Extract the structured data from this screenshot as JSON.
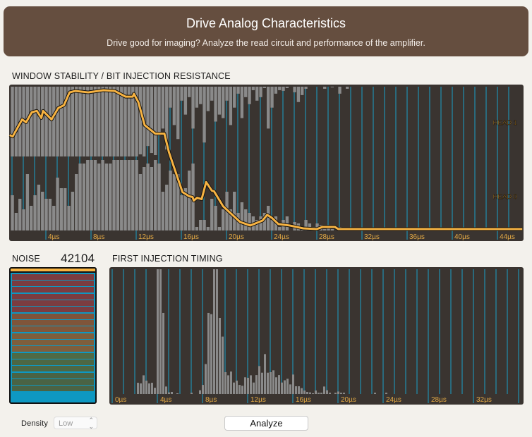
{
  "header": {
    "title": "Drive Analog Characteristics",
    "subtitle": "Drive good for imaging? Analyze the read circuit and performance of the amplifier."
  },
  "colors": {
    "header_bg": "#654e3f",
    "plot_bg": "#3a3430",
    "grid": "#1aa0c8",
    "bar": "#8a8a8a",
    "line": "#f7b342",
    "tick": "#e3a945"
  },
  "chart_data": [
    {
      "type": "bar+line",
      "title": "WINDOW STABILITY / BIT INJECTION RESISTANCE",
      "xunit": "µs",
      "xlim": [
        0.8,
        46.2
      ],
      "xticks": [
        "4µs",
        "8µs",
        "12µs",
        "16µs",
        "20µs",
        "24µs",
        "28µs",
        "32µs",
        "36µs",
        "40µs",
        "44µs"
      ],
      "xtick_values": [
        4,
        8,
        12,
        16,
        20,
        24,
        28,
        32,
        36,
        40,
        44
      ],
      "head_labels": [
        "HEAD 1",
        "HEAD 0"
      ],
      "bars_per_us": 3,
      "bars_start": 0.9,
      "head1": [
        1,
        1,
        1,
        1,
        1,
        1,
        1,
        1,
        1,
        1,
        1,
        1,
        1,
        1,
        1,
        1,
        1,
        1,
        1,
        1,
        1,
        1,
        1,
        1,
        1,
        1,
        1,
        1,
        1,
        1,
        1,
        1,
        1,
        1,
        0.97,
        1,
        0.85,
        0.95,
        0.98,
        0.7,
        0.6,
        0.9,
        0.3,
        0.55,
        0.75,
        0.2,
        0.4,
        0.15,
        0.6,
        0.3,
        0.25,
        0.8,
        0.35,
        0.2,
        0.5,
        0.4,
        0.45,
        0.2,
        0.55,
        0.3,
        0.1,
        0.45,
        0.15,
        0.25,
        0.05,
        0.2,
        0.15,
        0.02,
        0.6,
        0.3,
        0.1,
        0.05,
        0.06,
        0.02,
        0,
        0.08,
        0.22,
        0.12,
        0.03,
        0,
        0,
        0,
        0,
        0.03,
        0,
        0.01,
        0,
        0.1,
        0,
        0.03,
        0
      ],
      "head0": [
        0.5,
        0.25,
        0.45,
        0.3,
        0.8,
        0.35,
        0.5,
        0.65,
        0.55,
        0.45,
        0.45,
        0.35,
        0.75,
        0.6,
        0.6,
        0.35,
        0.55,
        0.8,
        0.95,
        0.95,
        1,
        1,
        1,
        0.95,
        1,
        0.95,
        0.95,
        1,
        1,
        1,
        1,
        1,
        1,
        1,
        0.8,
        0.9,
        0.95,
        0.9,
        1,
        0.95,
        0.55,
        0.65,
        0.85,
        0.8,
        0.8,
        0.5,
        0.6,
        0.85,
        0.95,
        0.05,
        0.15,
        0.15,
        0.05,
        0.45,
        0.35,
        0.05,
        0.3,
        0.55,
        0.3,
        0.55,
        0.25,
        0.4,
        0.3,
        0.25,
        0.2,
        0.15,
        0.2,
        0.25,
        0.35,
        0.15,
        0.2,
        0.05,
        0.15,
        0.2,
        0,
        0.12,
        0.1,
        0.05,
        0.15,
        0.1,
        0.05,
        0.1,
        0.08,
        0.02,
        0.05,
        0.02,
        0,
        0.05,
        0.02,
        0,
        0
      ],
      "line": [
        [
          0.8,
          0.67
        ],
        [
          1.06,
          0.66
        ],
        [
          1.9,
          0.78
        ],
        [
          2.25,
          0.76
        ],
        [
          2.75,
          0.83
        ],
        [
          3.2,
          0.84
        ],
        [
          3.6,
          0.79
        ],
        [
          3.75,
          0.84
        ],
        [
          4.5,
          0.78
        ],
        [
          5.1,
          0.86
        ],
        [
          5.6,
          0.88
        ],
        [
          6.1,
          0.97
        ],
        [
          6.6,
          0.98
        ],
        [
          7.75,
          0.97
        ],
        [
          9.1,
          0.985
        ],
        [
          10.1,
          0.98
        ],
        [
          11.06,
          0.94
        ],
        [
          11.7,
          0.94
        ],
        [
          11.8,
          0.96
        ],
        [
          12.2,
          0.9
        ],
        [
          12.75,
          0.74
        ],
        [
          13.7,
          0.68
        ],
        [
          14.2,
          0.68
        ],
        [
          14.5,
          0.68
        ],
        [
          14.9,
          0.55
        ],
        [
          16.1,
          0.27
        ],
        [
          16.7,
          0.24
        ],
        [
          17.0,
          0.235
        ],
        [
          17.1,
          0.21
        ],
        [
          17.4,
          0.23
        ],
        [
          17.8,
          0.22
        ],
        [
          18.2,
          0.34
        ],
        [
          18.7,
          0.28
        ],
        [
          18.9,
          0.275
        ],
        [
          19.7,
          0.17
        ],
        [
          21.2,
          0.06
        ],
        [
          22.1,
          0.035
        ],
        [
          23.2,
          0.07
        ],
        [
          23.6,
          0.11
        ],
        [
          24.0,
          0.09
        ],
        [
          24.6,
          0.045
        ],
        [
          25.6,
          0.035
        ],
        [
          26.8,
          0.015
        ],
        [
          28.0,
          0.01
        ],
        [
          28.5,
          0.025
        ],
        [
          29.6,
          0.025
        ],
        [
          29.9,
          0.01
        ],
        [
          46.2,
          0.01
        ]
      ],
      "ylim": [
        0,
        1
      ]
    },
    {
      "type": "bar",
      "title": "FIRST INJECTION TIMING",
      "xunit": "µs",
      "xlim": [
        -0.2,
        36.4
      ],
      "xticks": [
        "0µs",
        "4µs",
        "8µs",
        "12µs",
        "16µs",
        "20µs",
        "24µs",
        "28µs",
        "32µs"
      ],
      "xtick_values": [
        0,
        4,
        8,
        12,
        16,
        20,
        24,
        28,
        32
      ],
      "bin_width": 0.25,
      "bins_start": 2.0,
      "values": [
        0.09,
        0.085,
        0.15,
        0.107,
        0.085,
        0.09,
        0.05,
        1,
        1,
        0.65,
        0.06,
        0.013,
        0.017,
        0,
        0.006,
        0,
        0,
        0,
        0,
        0.01,
        0,
        0,
        0.03,
        0.073,
        0.24,
        0.65,
        0.64,
        1,
        1,
        0.61,
        0.46,
        0.175,
        0.15,
        0.18,
        0.092,
        0.107,
        0.073,
        0.066,
        0.134,
        0.13,
        0.15,
        0.092,
        0.152,
        0.224,
        0.171,
        0.32,
        0.171,
        0.175,
        0.19,
        0.134,
        0.152,
        0.092,
        0.11,
        0.122,
        0.077,
        0.156,
        0.062,
        0.062,
        0.047,
        0.028,
        0.017,
        0.013,
        0.006,
        0.028,
        0.01,
        0.01,
        0.06,
        0.03,
        0.01,
        0,
        0.01,
        0.02,
        0.01,
        0.01,
        0,
        0,
        0,
        0,
        0,
        0,
        0,
        0,
        0,
        0,
        0.01,
        0,
        0,
        0,
        0.01
      ],
      "ylim": [
        0,
        1
      ]
    }
  ],
  "noise": {
    "label": "NOISE",
    "value": "42104",
    "rows": [
      "#7b3c40",
      "#7b3c40",
      "#7b3c40",
      "#7b3c40",
      "#7b3c40",
      "#7b3c40",
      "#7f533a",
      "#7f553a",
      "#7f573b",
      "#7e5e3c",
      "#7e5e3c",
      "#7e5e3c",
      "#4f6a45",
      "#4d6744",
      "#4d6744",
      "#4a6344",
      "#4a6344",
      "#4a6344",
      "#4a6344",
      "#4a6344"
    ]
  },
  "controls": {
    "density_label": "Density",
    "density_value": "Low",
    "analyze_label": "Analyze"
  }
}
